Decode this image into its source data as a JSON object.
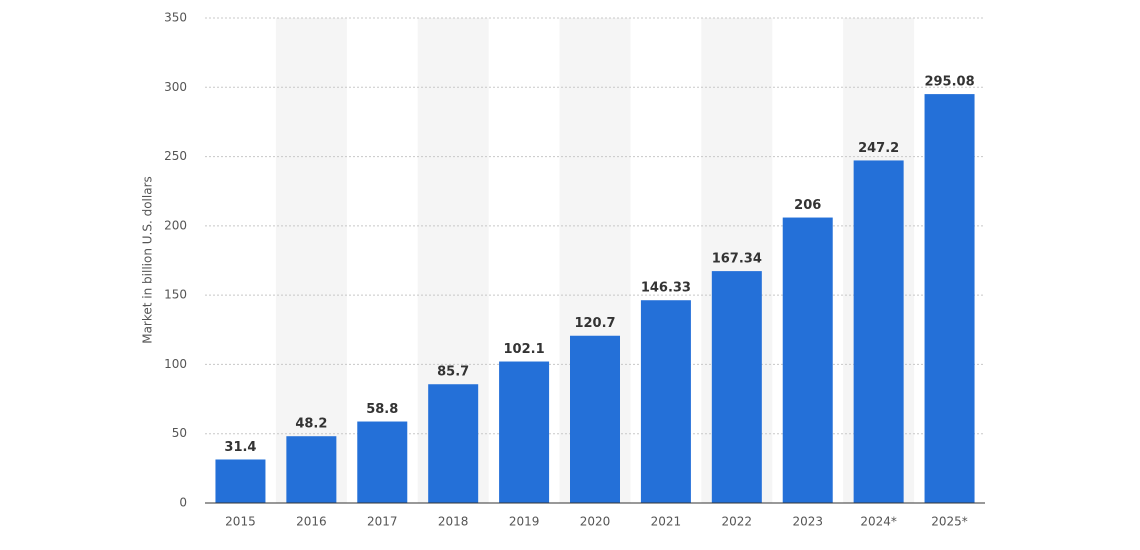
{
  "chart_data": {
    "type": "bar",
    "y_label": "Market in billion U.S. dollars",
    "categories": [
      "2015",
      "2016",
      "2017",
      "2018",
      "2019",
      "2020",
      "2021",
      "2022",
      "2023",
      "2024*",
      "2025*"
    ],
    "values": [
      31.4,
      48.2,
      58.8,
      85.7,
      102.1,
      120.7,
      146.33,
      167.34,
      206,
      247.2,
      295.08
    ],
    "color": "#2470d8",
    "ylim": [
      0,
      350
    ],
    "yticks": [
      0,
      50,
      100,
      150,
      200,
      250,
      300,
      350
    ],
    "grid": true
  }
}
